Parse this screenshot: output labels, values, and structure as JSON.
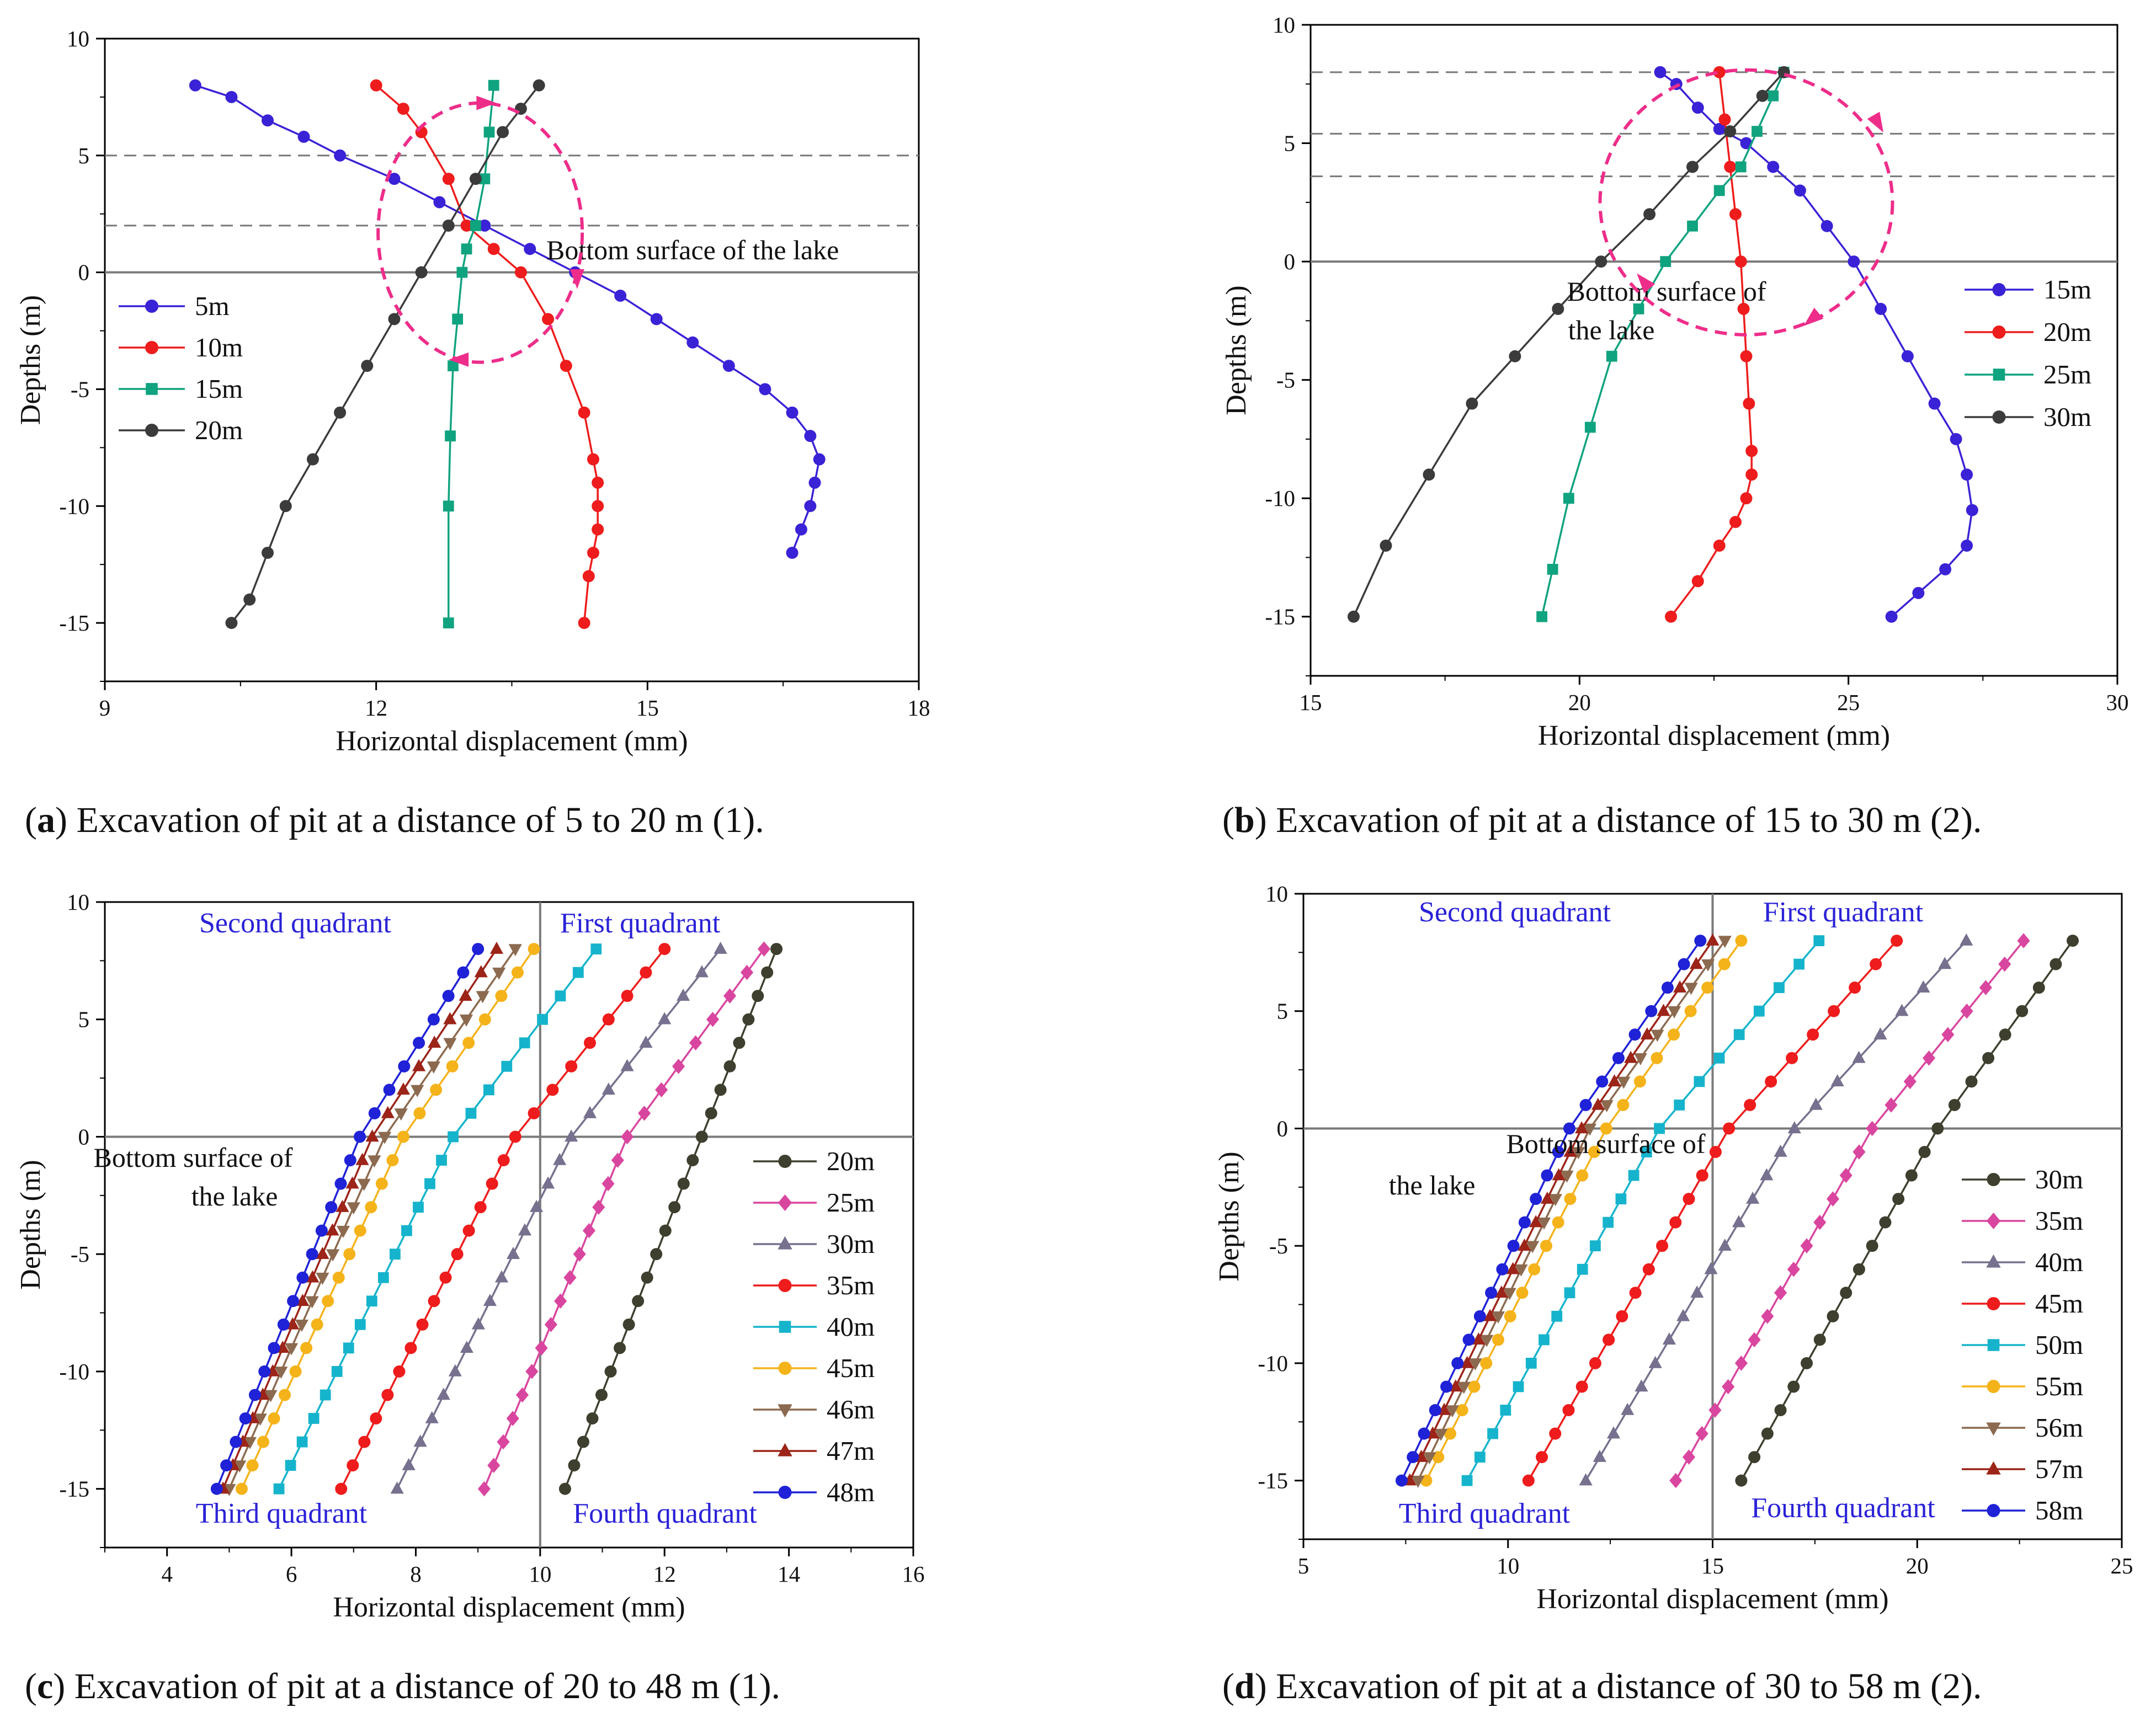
{
  "chart_data": [
    {
      "id": "a",
      "type": "line",
      "xlabel": "Horizontal displacement (mm)",
      "ylabel": "Depths (m)",
      "xlim": [
        9,
        18
      ],
      "ylim": [
        -17.5,
        10
      ],
      "xticks": [
        9,
        12,
        15,
        18
      ],
      "yticks": [
        10,
        5,
        0,
        -5,
        -10,
        -15
      ],
      "hlines_dashed": [
        5,
        2
      ],
      "hline_solid": 0,
      "vline_solid": null,
      "annotations": [
        "Bottom surface of the lake"
      ],
      "circular_arrows": true,
      "series": [
        {
          "name": "5m",
          "color": "#3a22d6",
          "marker": "circle",
          "x": [
            10.0,
            10.4,
            10.8,
            11.2,
            11.6,
            12.2,
            12.7,
            13.2,
            13.7,
            14.2,
            14.7,
            15.1,
            15.5,
            15.9,
            16.3,
            16.6,
            16.8,
            16.9,
            16.85,
            16.8,
            16.7,
            16.6
          ],
          "y": [
            8,
            7.5,
            6.5,
            5.8,
            5,
            4,
            3,
            2,
            1,
            0,
            -1,
            -2,
            -3,
            -4,
            -5,
            -6,
            -7,
            -8,
            -9,
            -10,
            -11,
            -12
          ]
        },
        {
          "name": "10m",
          "color": "#ee1c1c",
          "marker": "circle",
          "x": [
            12.0,
            12.3,
            12.5,
            12.8,
            13.0,
            13.3,
            13.6,
            13.9,
            14.1,
            14.3,
            14.4,
            14.45,
            14.45,
            14.45,
            14.4,
            14.35,
            14.3
          ],
          "y": [
            8,
            7,
            6,
            4,
            2,
            1,
            0,
            -2,
            -4,
            -6,
            -8,
            -9,
            -10,
            -11,
            -12,
            -13,
            -15
          ]
        },
        {
          "name": "15m",
          "color": "#10a37f",
          "marker": "square",
          "x": [
            13.3,
            13.25,
            13.2,
            13.1,
            13.0,
            12.95,
            12.9,
            12.85,
            12.82,
            12.8,
            12.8
          ],
          "y": [
            8,
            6,
            4,
            2,
            1,
            0,
            -2,
            -4,
            -7,
            -10,
            -15
          ]
        },
        {
          "name": "20m",
          "color": "#3b3b3b",
          "marker": "circle",
          "x": [
            13.8,
            13.6,
            13.4,
            13.1,
            12.8,
            12.5,
            12.2,
            11.9,
            11.6,
            11.3,
            11.0,
            10.8,
            10.6,
            10.4
          ],
          "y": [
            8,
            7,
            6,
            4,
            2,
            0,
            -2,
            -4,
            -6,
            -8,
            -10,
            -12,
            -14,
            -15
          ]
        }
      ]
    },
    {
      "id": "b",
      "type": "line",
      "xlabel": "Horizontal displacement (mm)",
      "ylabel": "Depths (m)",
      "xlim": [
        15,
        30
      ],
      "ylim": [
        -17.5,
        10
      ],
      "xticks": [
        15,
        20,
        25,
        30
      ],
      "yticks": [
        10,
        5,
        0,
        -5,
        -10,
        -15
      ],
      "hlines_dashed": [
        8,
        5.4,
        3.6
      ],
      "hline_solid": 0,
      "vline_solid": null,
      "annotations": [
        "Bottom surface of",
        "the lake"
      ],
      "circular_arrows": true,
      "series": [
        {
          "name": "15m",
          "color": "#3a22d6",
          "marker": "circle",
          "x": [
            21.5,
            21.8,
            22.2,
            22.6,
            23.1,
            23.6,
            24.1,
            24.6,
            25.1,
            25.6,
            26.1,
            26.6,
            27.0,
            27.2,
            27.3,
            27.2,
            26.8,
            26.3,
            25.8
          ],
          "y": [
            8,
            7.5,
            6.5,
            5.6,
            5,
            4,
            3,
            1.5,
            0,
            -2,
            -4,
            -6,
            -7.5,
            -9,
            -10.5,
            -12,
            -13,
            -14,
            -15
          ]
        },
        {
          "name": "20m",
          "color": "#ee1c1c",
          "marker": "circle",
          "x": [
            22.6,
            22.7,
            22.8,
            22.9,
            23.0,
            23.05,
            23.1,
            23.15,
            23.2,
            23.2,
            23.1,
            22.9,
            22.6,
            22.2,
            21.7
          ],
          "y": [
            8,
            6,
            4,
            2,
            0,
            -2,
            -4,
            -6,
            -8,
            -9,
            -10,
            -11,
            -12,
            -13.5,
            -15
          ]
        },
        {
          "name": "25m",
          "color": "#10a37f",
          "marker": "square",
          "x": [
            23.8,
            23.6,
            23.3,
            23.0,
            22.6,
            22.1,
            21.6,
            21.1,
            20.6,
            20.2,
            19.8,
            19.5,
            19.3
          ],
          "y": [
            8,
            7,
            5.5,
            4,
            3,
            1.5,
            0,
            -2,
            -4,
            -7,
            -10,
            -13,
            -15
          ]
        },
        {
          "name": "30m",
          "color": "#3b3b3b",
          "marker": "circle",
          "x": [
            23.8,
            23.4,
            22.8,
            22.1,
            21.3,
            20.4,
            19.6,
            18.8,
            18.0,
            17.2,
            16.4,
            15.8
          ],
          "y": [
            8,
            7,
            5.5,
            4,
            2,
            0,
            -2,
            -4,
            -6,
            -9,
            -12,
            -15
          ]
        }
      ]
    },
    {
      "id": "c",
      "type": "line",
      "xlabel": "Horizontal displacement (mm)",
      "ylabel": "Depths (m)",
      "xlim": [
        3,
        16
      ],
      "ylim": [
        -17.5,
        10
      ],
      "xticks": [
        4,
        6,
        8,
        10,
        12,
        14,
        16
      ],
      "yticks": [
        10,
        5,
        0,
        -5,
        -10,
        -15
      ],
      "hlines_dashed": [],
      "hline_solid": 0,
      "vline_solid": 10,
      "annotations": [
        "Bottom surface of",
        "the lake"
      ],
      "quadrant_labels": {
        "first": "First quadrant",
        "second": "Second quadrant",
        "third": "Third quadrant",
        "fourth": "Fourth quadrant"
      },
      "series": [
        {
          "name": "20m",
          "color": "#3f3f2f",
          "marker": "circle",
          "x": [
            13.8,
            12.6,
            10.4
          ],
          "y": [
            8,
            0,
            -15
          ]
        },
        {
          "name": "25m",
          "color": "#d9469f",
          "marker": "diamond",
          "x": [
            13.6,
            11.4,
            9.1
          ],
          "y": [
            8,
            0,
            -15
          ]
        },
        {
          "name": "30m",
          "color": "#77708e",
          "marker": "triangle-up",
          "x": [
            12.9,
            10.5,
            7.7
          ],
          "y": [
            8,
            0,
            -15
          ]
        },
        {
          "name": "35m",
          "color": "#ee1c1c",
          "marker": "circle",
          "x": [
            12.0,
            9.6,
            6.8
          ],
          "y": [
            8,
            0,
            -15
          ]
        },
        {
          "name": "40m",
          "color": "#16b4cc",
          "marker": "square",
          "x": [
            10.9,
            8.6,
            5.8
          ],
          "y": [
            8,
            0,
            -15
          ]
        },
        {
          "name": "45m",
          "color": "#f5b31a",
          "marker": "circle",
          "x": [
            9.9,
            7.8,
            5.2
          ],
          "y": [
            8,
            0,
            -15
          ]
        },
        {
          "name": "46m",
          "color": "#8c6a4f",
          "marker": "triangle-down",
          "x": [
            9.6,
            7.5,
            5.0
          ],
          "y": [
            8,
            0,
            -15
          ]
        },
        {
          "name": "47m",
          "color": "#9c2418",
          "marker": "triangle-up",
          "x": [
            9.3,
            7.3,
            4.9
          ],
          "y": [
            8,
            0,
            -15
          ]
        },
        {
          "name": "48m",
          "color": "#1f22d6",
          "marker": "circle",
          "x": [
            9.0,
            7.1,
            4.8
          ],
          "y": [
            8,
            0,
            -15
          ]
        }
      ]
    },
    {
      "id": "d",
      "type": "line",
      "xlabel": "Horizontal displacement (mm)",
      "ylabel": "Depths (m)",
      "xlim": [
        5,
        25
      ],
      "ylim": [
        -17.5,
        10
      ],
      "xticks": [
        5,
        10,
        15,
        20,
        25
      ],
      "yticks": [
        10,
        5,
        0,
        -5,
        -10,
        -15
      ],
      "hlines_dashed": [],
      "hline_solid": 0,
      "vline_solid": 15,
      "annotations": [
        "Bottom surface of",
        "the lake"
      ],
      "quadrant_labels": {
        "first": "First quadrant",
        "second": "Second quadrant",
        "third": "Third quadrant",
        "fourth": "Fourth quadrant"
      },
      "series": [
        {
          "name": "30m",
          "color": "#3f3f2f",
          "marker": "circle",
          "x": [
            23.8,
            20.5,
            15.7
          ],
          "y": [
            8,
            0,
            -15
          ]
        },
        {
          "name": "35m",
          "color": "#d9469f",
          "marker": "diamond",
          "x": [
            22.6,
            18.9,
            14.1
          ],
          "y": [
            8,
            0,
            -15
          ]
        },
        {
          "name": "40m",
          "color": "#77708e",
          "marker": "triangle-up",
          "x": [
            21.2,
            17.0,
            11.9
          ],
          "y": [
            8,
            0,
            -15
          ]
        },
        {
          "name": "45m",
          "color": "#ee1c1c",
          "marker": "circle",
          "x": [
            19.5,
            15.4,
            10.5
          ],
          "y": [
            8,
            0,
            -15
          ]
        },
        {
          "name": "50m",
          "color": "#16b4cc",
          "marker": "square",
          "x": [
            17.6,
            13.7,
            9.0
          ],
          "y": [
            8,
            0,
            -15
          ]
        },
        {
          "name": "55m",
          "color": "#f5b31a",
          "marker": "circle",
          "x": [
            15.7,
            12.4,
            8.0
          ],
          "y": [
            8,
            0,
            -15
          ]
        },
        {
          "name": "56m",
          "color": "#8c6a4f",
          "marker": "triangle-down",
          "x": [
            15.3,
            12.0,
            7.8
          ],
          "y": [
            8,
            0,
            -15
          ]
        },
        {
          "name": "57m",
          "color": "#9c2418",
          "marker": "triangle-up",
          "x": [
            15.0,
            11.8,
            7.6
          ],
          "y": [
            8,
            0,
            -15
          ]
        },
        {
          "name": "58m",
          "color": "#1f22d6",
          "marker": "circle",
          "x": [
            14.7,
            11.5,
            7.4
          ],
          "y": [
            8,
            0,
            -15
          ]
        }
      ]
    }
  ],
  "captions": [
    {
      "letter": "a",
      "text": ") Excavation of pit at a distance of 5 to 20 m (1)."
    },
    {
      "letter": "b",
      "text": ") Excavation of pit at a distance of 15 to 30 m (2)."
    },
    {
      "letter": "c",
      "text": ") Excavation of pit at a distance of 20 to 48 m (1)."
    },
    {
      "letter": "d",
      "text": ") Excavation of pit at a distance of 30 to 58 m (2)."
    }
  ],
  "caption_open": "("
}
